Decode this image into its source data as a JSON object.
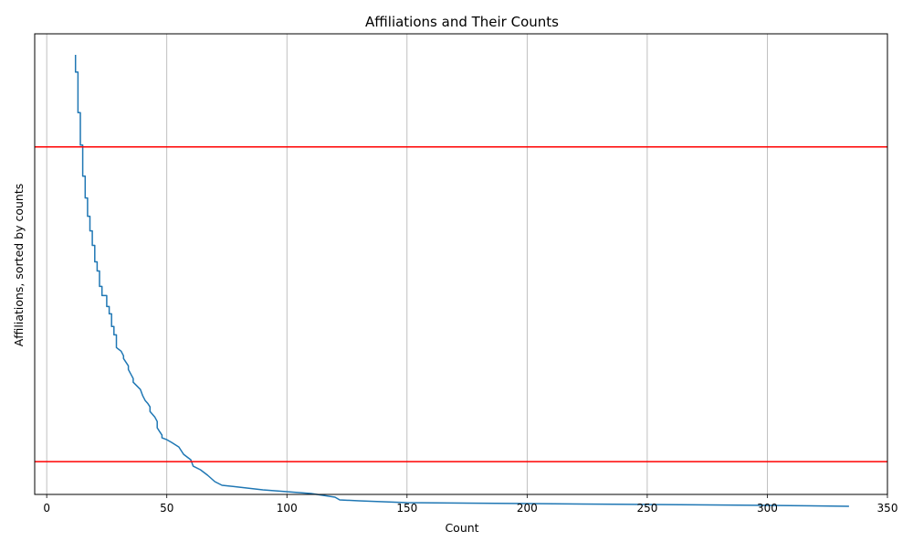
{
  "chart_data": {
    "type": "line",
    "title": "Affiliations and Their Counts",
    "xlabel": "Count",
    "ylabel": "Affiliations, sorted by counts",
    "xlim": [
      -5,
      350
    ],
    "ylim": [
      0,
      1
    ],
    "x_ticks": [
      0,
      50,
      100,
      150,
      200,
      250,
      300,
      350
    ],
    "y_ticks": [],
    "grid": "x-only",
    "line_color": "#1f77b4",
    "reference_line_color": "#ff0000",
    "reference_lines_y": [
      0.7545,
      0.0713
    ],
    "series": [
      {
        "x": [
          12,
          12,
          13,
          13,
          14,
          14,
          15,
          15,
          16,
          16,
          17,
          17,
          18,
          18,
          19,
          19,
          20,
          20,
          21,
          21,
          22,
          22,
          23,
          23,
          25,
          25,
          26,
          26,
          27,
          27,
          28,
          28,
          29,
          29,
          31,
          32,
          32,
          34,
          34,
          36,
          36,
          39,
          40,
          41,
          42,
          43,
          43,
          45,
          46,
          46,
          47,
          48,
          48,
          50,
          52,
          55,
          56,
          57,
          60,
          61,
          64,
          67,
          70,
          73,
          80,
          90,
          100,
          110,
          120,
          122,
          130,
          150,
          200,
          250,
          300,
          334
        ],
        "y": [
          0.9544,
          0.9168,
          0.9168,
          0.8287,
          0.8287,
          0.7584,
          0.7584,
          0.6911,
          0.6911,
          0.6436,
          0.6436,
          0.604,
          0.604,
          0.5723,
          0.5723,
          0.5406,
          0.5406,
          0.505,
          0.505,
          0.4851,
          0.4851,
          0.4515,
          0.4515,
          0.4317,
          0.4317,
          0.4079,
          0.4079,
          0.3921,
          0.3921,
          0.3644,
          0.3644,
          0.3465,
          0.3465,
          0.3188,
          0.3109,
          0.301,
          0.295,
          0.2792,
          0.2713,
          0.2515,
          0.2436,
          0.2277,
          0.2139,
          0.204,
          0.198,
          0.1901,
          0.1802,
          0.1683,
          0.1584,
          0.1446,
          0.1366,
          0.1287,
          0.1228,
          0.1188,
          0.1129,
          0.103,
          0.095,
          0.0871,
          0.0752,
          0.0614,
          0.0535,
          0.0416,
          0.0277,
          0.0198,
          0.0158,
          0.0099,
          0.0059,
          0.002,
          -0.0059,
          -0.0119,
          -0.0139,
          -0.0178,
          -0.0198,
          -0.0218,
          -0.0238,
          -0.0257
        ]
      }
    ]
  }
}
